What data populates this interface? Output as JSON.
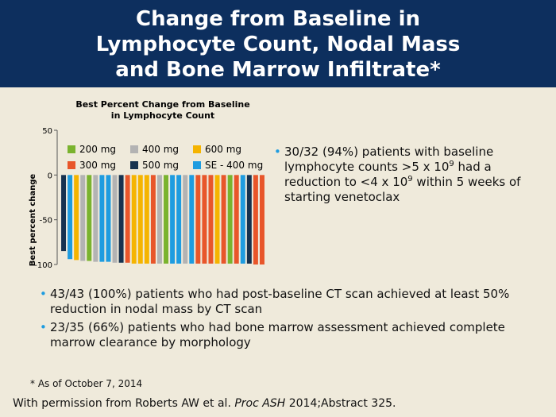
{
  "header": {
    "title_lines": [
      "Change from Baseline in",
      "Lymphocyte Count, Nodal Mass",
      "and Bone Marrow Infiltrate*"
    ]
  },
  "chart_data": {
    "type": "bar",
    "title_lines": [
      "Best Percent Change from Baseline",
      "in Lymphocyte Count"
    ],
    "y_label": "Best percent change",
    "ylim": [
      -100,
      50
    ],
    "yticks": [
      50,
      0,
      -50,
      -100
    ],
    "legend": [
      {
        "name": "200 mg",
        "color": "#7ab32e"
      },
      {
        "name": "400 mg",
        "color": "#b3b3b3"
      },
      {
        "name": "600 mg",
        "color": "#f5b400"
      },
      {
        "name": "300 mg",
        "color": "#e8562a"
      },
      {
        "name": "500 mg",
        "color": "#16324f"
      },
      {
        "name": "SE - 400 mg",
        "color": "#1e9ce0"
      }
    ],
    "values": [
      -85,
      -94,
      -95,
      -96,
      -96,
      -97,
      -97,
      -97,
      -98,
      -98,
      -98,
      -99,
      -99,
      -99,
      -99,
      -99,
      -99,
      -99,
      -99,
      -99,
      -99,
      -99,
      -99,
      -99,
      -99,
      -99,
      -99,
      -99,
      -99,
      -99,
      -100,
      -100
    ],
    "bar_groups": [
      4,
      5,
      2,
      1,
      0,
      1,
      5,
      5,
      1,
      4,
      3,
      2,
      2,
      2,
      3,
      1,
      0,
      5,
      5,
      1,
      5,
      3,
      3,
      3,
      2,
      3,
      0,
      3,
      5,
      4,
      3,
      3
    ]
  },
  "side_bullet": [
    "30/32 (94%) patients with baseline lymphocyte counts >5 x 10",
    "9",
    " had a reduction to <4 x 10",
    "9",
    " within 5 weeks of starting venetoclax"
  ],
  "bullets": [
    "43/43 (100%) patients who had post-baseline CT scan achieved at least 50% reduction in nodal mass by CT scan",
    "23/35 (66%) patients who had bone marrow assessment achieved complete marrow clearance by morphology"
  ],
  "footnote": "* As of October 7, 2014",
  "citation": [
    "With permission from Roberts AW et al. ",
    "Proc ASH",
    " 2014;Abstract 325."
  ]
}
